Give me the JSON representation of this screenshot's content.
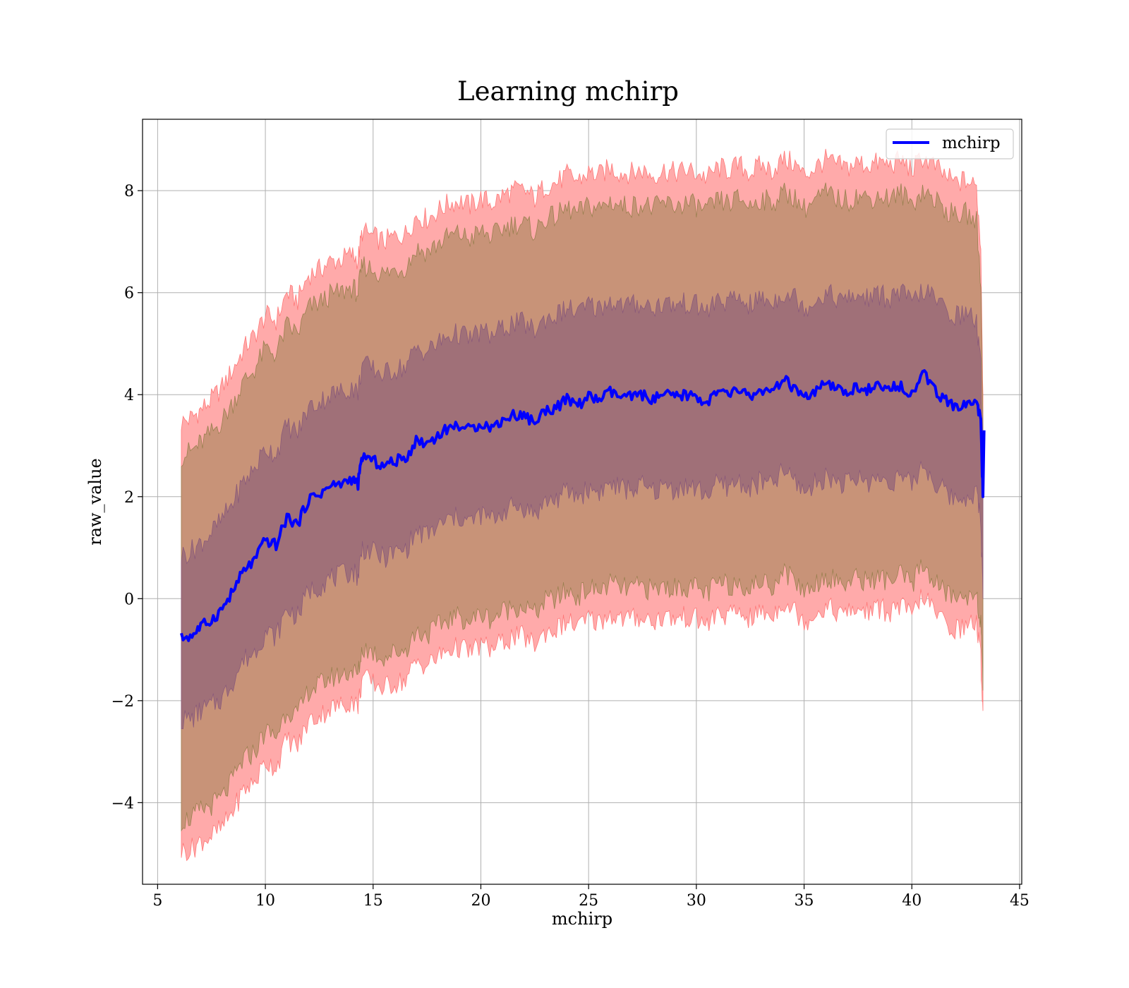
{
  "chart_data": {
    "type": "area",
    "title": "Learning mchirp",
    "xlabel": "mchirp",
    "ylabel": "raw_value",
    "xlim": [
      4.3,
      45.1
    ],
    "ylim": [
      -5.6,
      9.4
    ],
    "xticks": [
      5,
      10,
      15,
      20,
      25,
      30,
      35,
      40,
      45
    ],
    "yticks": [
      -4,
      -2,
      0,
      2,
      4,
      6,
      8
    ],
    "xtick_labels": [
      "5",
      "10",
      "15",
      "20",
      "25",
      "30",
      "35",
      "40",
      "45"
    ],
    "ytick_labels": [
      "−4",
      "−2",
      "0",
      "2",
      "4",
      "6",
      "8"
    ],
    "grid": true,
    "legend": {
      "position": "top-right",
      "entries": [
        "mchirp"
      ]
    },
    "colors": {
      "mean": "#0000ff",
      "outer_band": "#ffaaaa",
      "middle_band": "#c89378",
      "inner_band": "#a07078"
    },
    "series": [
      {
        "name": "mchirp",
        "x": [
          6.1,
          6.6,
          7,
          7.5,
          8,
          8.5,
          9,
          9.5,
          10,
          10.5,
          11,
          11.5,
          12,
          12.5,
          13,
          13.5,
          14,
          14.3,
          14.5,
          15,
          15.5,
          16,
          16.5,
          17,
          17.5,
          18,
          18.5,
          19,
          19.5,
          20,
          20.5,
          21,
          21.5,
          22,
          22.5,
          23,
          23.5,
          24,
          24.5,
          25,
          25.5,
          26,
          26.5,
          27,
          27.5,
          28,
          28.5,
          29,
          29.5,
          30,
          30.5,
          31,
          31.5,
          32,
          32.5,
          33,
          33.5,
          34,
          34.5,
          35,
          35.5,
          36,
          36.5,
          37,
          37.5,
          38,
          38.5,
          39,
          39.5,
          40,
          40.5,
          41,
          41.5,
          42,
          42.5,
          43,
          43.2,
          43.3
        ],
        "values": [
          -0.77,
          -0.72,
          -0.55,
          -0.42,
          -0.2,
          0.15,
          0.55,
          0.75,
          1.15,
          1.05,
          1.6,
          1.45,
          1.95,
          2.05,
          2.2,
          2.25,
          2.35,
          2.25,
          2.8,
          2.7,
          2.6,
          2.7,
          2.75,
          3.1,
          3.05,
          3.2,
          3.35,
          3.4,
          3.3,
          3.45,
          3.35,
          3.5,
          3.6,
          3.6,
          3.45,
          3.7,
          3.75,
          3.9,
          3.8,
          3.95,
          3.9,
          4.05,
          3.95,
          3.95,
          4.0,
          3.9,
          4.0,
          3.95,
          4.0,
          3.95,
          3.85,
          4.05,
          4.0,
          4.1,
          3.95,
          4.1,
          4.0,
          4.3,
          4.15,
          3.9,
          4.05,
          4.2,
          4.1,
          4.05,
          4.15,
          4.1,
          4.15,
          4.1,
          4.2,
          4.0,
          4.45,
          4.1,
          3.9,
          3.75,
          3.8,
          3.9,
          3.5,
          2.0
        ]
      }
    ],
    "bands": {
      "inner_upper": [
        0.85,
        0.95,
        1.1,
        1.3,
        1.55,
        1.9,
        2.3,
        2.55,
        2.95,
        2.85,
        3.4,
        3.25,
        3.75,
        3.85,
        4.0,
        4.05,
        4.15,
        4.05,
        4.6,
        4.5,
        4.4,
        4.5,
        4.55,
        4.9,
        4.85,
        5.0,
        5.15,
        5.2,
        5.1,
        5.25,
        5.15,
        5.3,
        5.4,
        5.4,
        5.25,
        5.5,
        5.55,
        5.7,
        5.6,
        5.75,
        5.7,
        5.85,
        5.75,
        5.75,
        5.8,
        5.7,
        5.8,
        5.75,
        5.8,
        5.75,
        5.65,
        5.85,
        5.8,
        5.9,
        5.75,
        5.9,
        5.8,
        6.0,
        5.95,
        5.7,
        5.85,
        6.0,
        5.9,
        5.85,
        5.95,
        5.9,
        5.95,
        5.9,
        6.0,
        5.8,
        6.05,
        5.9,
        5.7,
        5.55,
        5.6,
        5.45,
        4.5,
        2.2
      ],
      "inner_lower": [
        -2.38,
        -2.35,
        -2.2,
        -2.1,
        -1.95,
        -1.6,
        -1.2,
        -1.05,
        -0.65,
        -0.75,
        -0.2,
        -0.35,
        0.15,
        0.25,
        0.4,
        0.45,
        0.55,
        0.45,
        1.0,
        0.9,
        0.8,
        0.9,
        0.95,
        1.3,
        1.25,
        1.4,
        1.55,
        1.6,
        1.5,
        1.65,
        1.55,
        1.7,
        1.8,
        1.8,
        1.65,
        1.9,
        1.95,
        2.1,
        2.0,
        2.15,
        2.1,
        2.25,
        2.15,
        2.15,
        2.2,
        2.1,
        2.2,
        2.15,
        2.2,
        2.15,
        2.05,
        2.25,
        2.2,
        2.3,
        2.15,
        2.3,
        2.2,
        2.5,
        2.35,
        2.1,
        2.25,
        2.4,
        2.3,
        2.25,
        2.35,
        2.3,
        2.35,
        2.3,
        2.4,
        2.2,
        2.65,
        2.3,
        2.1,
        1.95,
        2.0,
        2.1,
        1.5,
        0.0
      ],
      "middle_upper": [
        2.8,
        2.9,
        3.05,
        3.25,
        3.5,
        3.85,
        4.25,
        4.5,
        4.9,
        4.8,
        5.35,
        5.2,
        5.7,
        5.8,
        5.95,
        6.0,
        6.1,
        6.0,
        6.55,
        6.45,
        6.35,
        6.45,
        6.5,
        6.85,
        6.8,
        6.95,
        7.1,
        7.15,
        7.05,
        7.2,
        7.1,
        7.25,
        7.35,
        7.35,
        7.2,
        7.45,
        7.5,
        7.65,
        7.55,
        7.7,
        7.65,
        7.8,
        7.7,
        7.7,
        7.75,
        7.65,
        7.75,
        7.7,
        7.75,
        7.7,
        7.6,
        7.8,
        7.75,
        7.85,
        7.7,
        7.85,
        7.75,
        7.95,
        7.9,
        7.65,
        7.8,
        7.95,
        7.85,
        7.8,
        7.9,
        7.85,
        7.9,
        7.85,
        7.95,
        7.75,
        8.0,
        7.85,
        7.65,
        7.5,
        7.55,
        7.4,
        6.2,
        3.5
      ],
      "middle_lower": [
        -4.35,
        -4.3,
        -4.15,
        -4.05,
        -3.9,
        -3.55,
        -3.15,
        -3.0,
        -2.6,
        -2.7,
        -2.15,
        -2.3,
        -1.8,
        -1.7,
        -1.55,
        -1.5,
        -1.4,
        -1.5,
        -0.95,
        -1.05,
        -1.15,
        -1.05,
        -1.0,
        -0.65,
        -0.7,
        -0.55,
        -0.4,
        -0.35,
        -0.45,
        -0.3,
        -0.4,
        -0.25,
        -0.15,
        -0.15,
        -0.3,
        -0.05,
        0.0,
        0.15,
        0.05,
        0.2,
        0.15,
        0.3,
        0.2,
        0.2,
        0.25,
        0.15,
        0.25,
        0.2,
        0.25,
        0.2,
        0.1,
        0.3,
        0.25,
        0.35,
        0.2,
        0.35,
        0.25,
        0.55,
        0.4,
        0.15,
        0.3,
        0.45,
        0.35,
        0.3,
        0.4,
        0.35,
        0.4,
        0.35,
        0.45,
        0.25,
        0.7,
        0.35,
        0.15,
        0.0,
        0.05,
        0.15,
        -0.5,
        -1.8
      ],
      "outer_upper": [
        3.45,
        3.55,
        3.7,
        3.9,
        4.15,
        4.5,
        4.9,
        5.15,
        5.55,
        5.45,
        6.0,
        5.85,
        6.35,
        6.45,
        6.6,
        6.65,
        6.75,
        6.65,
        7.2,
        7.1,
        7.0,
        7.1,
        7.15,
        7.5,
        7.45,
        7.6,
        7.75,
        7.8,
        7.7,
        7.85,
        7.75,
        7.9,
        8.0,
        8.0,
        7.85,
        8.1,
        8.15,
        8.3,
        8.2,
        8.35,
        8.3,
        8.45,
        8.35,
        8.35,
        8.4,
        8.3,
        8.4,
        8.35,
        8.4,
        8.35,
        8.25,
        8.45,
        8.4,
        8.5,
        8.35,
        8.5,
        8.4,
        8.6,
        8.55,
        8.3,
        8.45,
        8.6,
        8.5,
        8.45,
        8.55,
        8.5,
        8.55,
        8.5,
        8.6,
        8.4,
        8.65,
        8.5,
        8.3,
        8.15,
        8.2,
        8.05,
        6.9,
        4.0
      ],
      "outer_lower": [
        -4.95,
        -4.9,
        -4.75,
        -4.65,
        -4.5,
        -4.15,
        -3.75,
        -3.6,
        -3.2,
        -3.3,
        -2.75,
        -2.9,
        -2.4,
        -2.3,
        -2.15,
        -2.1,
        -2.0,
        -2.1,
        -1.55,
        -1.65,
        -1.75,
        -1.65,
        -1.6,
        -1.25,
        -1.3,
        -1.15,
        -1.0,
        -0.95,
        -1.05,
        -0.9,
        -1.0,
        -0.85,
        -0.75,
        -0.75,
        -0.9,
        -0.65,
        -0.6,
        -0.45,
        -0.55,
        -0.4,
        -0.45,
        -0.3,
        -0.4,
        -0.4,
        -0.35,
        -0.45,
        -0.35,
        -0.4,
        -0.35,
        -0.4,
        -0.5,
        -0.3,
        -0.35,
        -0.25,
        -0.4,
        -0.25,
        -0.35,
        -0.05,
        -0.2,
        -0.45,
        -0.3,
        -0.15,
        -0.25,
        -0.3,
        -0.2,
        -0.25,
        -0.2,
        -0.25,
        -0.15,
        -0.35,
        0.1,
        -0.25,
        -0.45,
        -0.6,
        -0.55,
        -0.45,
        -1.2,
        -2.2
      ]
    }
  }
}
